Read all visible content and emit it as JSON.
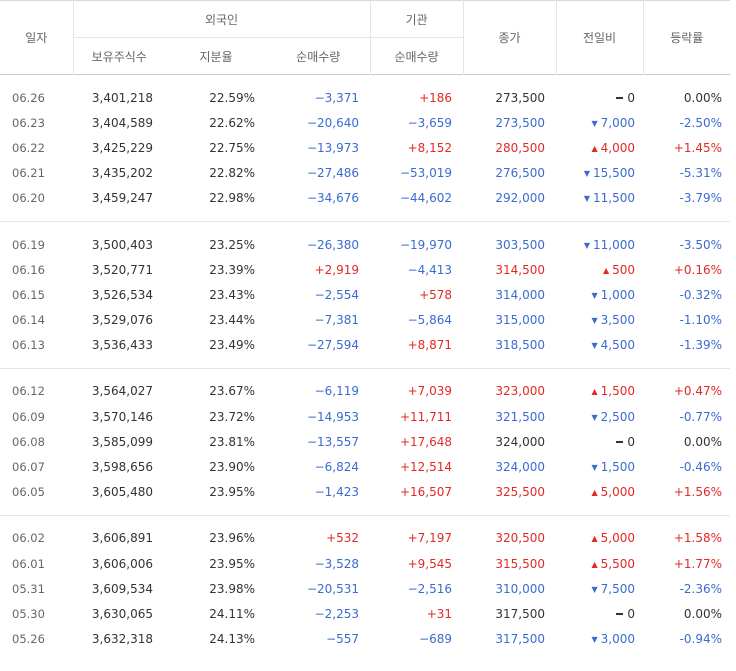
{
  "header": {
    "date": "일자",
    "foreign": "외국인",
    "institution": "기관",
    "close": "종가",
    "change": "전일비",
    "rate": "등락률",
    "holdings": "보유주식수",
    "ratio": "지분율",
    "foreign_net": "순매수량",
    "inst_net": "순매수량"
  },
  "groups": [
    [
      {
        "date": "06.26",
        "hold": "3,401,218",
        "ratio": "22.59%",
        "fnet": "−3,371",
        "fdir": "down",
        "inet": "+186",
        "idir": "up",
        "close": "273,500",
        "cdir": "flat",
        "chg": "0",
        "chgdir": "flat",
        "rate": "0.00%",
        "rdir": "flat"
      },
      {
        "date": "06.23",
        "hold": "3,404,589",
        "ratio": "22.62%",
        "fnet": "−20,640",
        "fdir": "down",
        "inet": "−3,659",
        "idir": "down",
        "close": "273,500",
        "cdir": "down",
        "chg": "7,000",
        "chgdir": "down",
        "rate": "-2.50%",
        "rdir": "down"
      },
      {
        "date": "06.22",
        "hold": "3,425,229",
        "ratio": "22.75%",
        "fnet": "−13,973",
        "fdir": "down",
        "inet": "+8,152",
        "idir": "up",
        "close": "280,500",
        "cdir": "up",
        "chg": "4,000",
        "chgdir": "up",
        "rate": "+1.45%",
        "rdir": "up"
      },
      {
        "date": "06.21",
        "hold": "3,435,202",
        "ratio": "22.82%",
        "fnet": "−27,486",
        "fdir": "down",
        "inet": "−53,019",
        "idir": "down",
        "close": "276,500",
        "cdir": "down",
        "chg": "15,500",
        "chgdir": "down",
        "rate": "-5.31%",
        "rdir": "down"
      },
      {
        "date": "06.20",
        "hold": "3,459,247",
        "ratio": "22.98%",
        "fnet": "−34,676",
        "fdir": "down",
        "inet": "−44,602",
        "idir": "down",
        "close": "292,000",
        "cdir": "down",
        "chg": "11,500",
        "chgdir": "down",
        "rate": "-3.79%",
        "rdir": "down"
      }
    ],
    [
      {
        "date": "06.19",
        "hold": "3,500,403",
        "ratio": "23.25%",
        "fnet": "−26,380",
        "fdir": "down",
        "inet": "−19,970",
        "idir": "down",
        "close": "303,500",
        "cdir": "down",
        "chg": "11,000",
        "chgdir": "down",
        "rate": "-3.50%",
        "rdir": "down"
      },
      {
        "date": "06.16",
        "hold": "3,520,771",
        "ratio": "23.39%",
        "fnet": "+2,919",
        "fdir": "up",
        "inet": "−4,413",
        "idir": "down",
        "close": "314,500",
        "cdir": "up",
        "chg": "500",
        "chgdir": "up",
        "rate": "+0.16%",
        "rdir": "up"
      },
      {
        "date": "06.15",
        "hold": "3,526,534",
        "ratio": "23.43%",
        "fnet": "−2,554",
        "fdir": "down",
        "inet": "+578",
        "idir": "up",
        "close": "314,000",
        "cdir": "down",
        "chg": "1,000",
        "chgdir": "down",
        "rate": "-0.32%",
        "rdir": "down"
      },
      {
        "date": "06.14",
        "hold": "3,529,076",
        "ratio": "23.44%",
        "fnet": "−7,381",
        "fdir": "down",
        "inet": "−5,864",
        "idir": "down",
        "close": "315,000",
        "cdir": "down",
        "chg": "3,500",
        "chgdir": "down",
        "rate": "-1.10%",
        "rdir": "down"
      },
      {
        "date": "06.13",
        "hold": "3,536,433",
        "ratio": "23.49%",
        "fnet": "−27,594",
        "fdir": "down",
        "inet": "+8,871",
        "idir": "up",
        "close": "318,500",
        "cdir": "down",
        "chg": "4,500",
        "chgdir": "down",
        "rate": "-1.39%",
        "rdir": "down"
      }
    ],
    [
      {
        "date": "06.12",
        "hold": "3,564,027",
        "ratio": "23.67%",
        "fnet": "−6,119",
        "fdir": "down",
        "inet": "+7,039",
        "idir": "up",
        "close": "323,000",
        "cdir": "up",
        "chg": "1,500",
        "chgdir": "up",
        "rate": "+0.47%",
        "rdir": "up"
      },
      {
        "date": "06.09",
        "hold": "3,570,146",
        "ratio": "23.72%",
        "fnet": "−14,953",
        "fdir": "down",
        "inet": "+11,711",
        "idir": "up",
        "close": "321,500",
        "cdir": "down",
        "chg": "2,500",
        "chgdir": "down",
        "rate": "-0.77%",
        "rdir": "down"
      },
      {
        "date": "06.08",
        "hold": "3,585,099",
        "ratio": "23.81%",
        "fnet": "−13,557",
        "fdir": "down",
        "inet": "+17,648",
        "idir": "up",
        "close": "324,000",
        "cdir": "flat",
        "chg": "0",
        "chgdir": "flat",
        "rate": "0.00%",
        "rdir": "flat"
      },
      {
        "date": "06.07",
        "hold": "3,598,656",
        "ratio": "23.90%",
        "fnet": "−6,824",
        "fdir": "down",
        "inet": "+12,514",
        "idir": "up",
        "close": "324,000",
        "cdir": "down",
        "chg": "1,500",
        "chgdir": "down",
        "rate": "-0.46%",
        "rdir": "down"
      },
      {
        "date": "06.05",
        "hold": "3,605,480",
        "ratio": "23.95%",
        "fnet": "−1,423",
        "fdir": "down",
        "inet": "+16,507",
        "idir": "up",
        "close": "325,500",
        "cdir": "up",
        "chg": "5,000",
        "chgdir": "up",
        "rate": "+1.56%",
        "rdir": "up"
      }
    ],
    [
      {
        "date": "06.02",
        "hold": "3,606,891",
        "ratio": "23.96%",
        "fnet": "+532",
        "fdir": "up",
        "inet": "+7,197",
        "idir": "up",
        "close": "320,500",
        "cdir": "up",
        "chg": "5,000",
        "chgdir": "up",
        "rate": "+1.58%",
        "rdir": "up"
      },
      {
        "date": "06.01",
        "hold": "3,606,006",
        "ratio": "23.95%",
        "fnet": "−3,528",
        "fdir": "down",
        "inet": "+9,545",
        "idir": "up",
        "close": "315,500",
        "cdir": "up",
        "chg": "5,500",
        "chgdir": "up",
        "rate": "+1.77%",
        "rdir": "up"
      },
      {
        "date": "05.31",
        "hold": "3,609,534",
        "ratio": "23.98%",
        "fnet": "−20,531",
        "fdir": "down",
        "inet": "−2,516",
        "idir": "down",
        "close": "310,000",
        "cdir": "down",
        "chg": "7,500",
        "chgdir": "down",
        "rate": "-2.36%",
        "rdir": "down"
      },
      {
        "date": "05.30",
        "hold": "3,630,065",
        "ratio": "24.11%",
        "fnet": "−2,253",
        "fdir": "down",
        "inet": "+31",
        "idir": "up",
        "close": "317,500",
        "cdir": "flat",
        "chg": "0",
        "chgdir": "flat",
        "rate": "0.00%",
        "rdir": "flat"
      },
      {
        "date": "05.26",
        "hold": "3,632,318",
        "ratio": "24.13%",
        "fnet": "−557",
        "fdir": "down",
        "inet": "−689",
        "idir": "down",
        "close": "317,500",
        "cdir": "down",
        "chg": "3,000",
        "chgdir": "down",
        "rate": "-0.94%",
        "rdir": "down"
      }
    ]
  ],
  "colors": {
    "up": "#e22926",
    "down": "#3b6bd1",
    "flat": "#333333"
  },
  "icons": {
    "up": "triangle-up-icon",
    "down": "triangle-down-icon",
    "flat": "dash-icon"
  }
}
